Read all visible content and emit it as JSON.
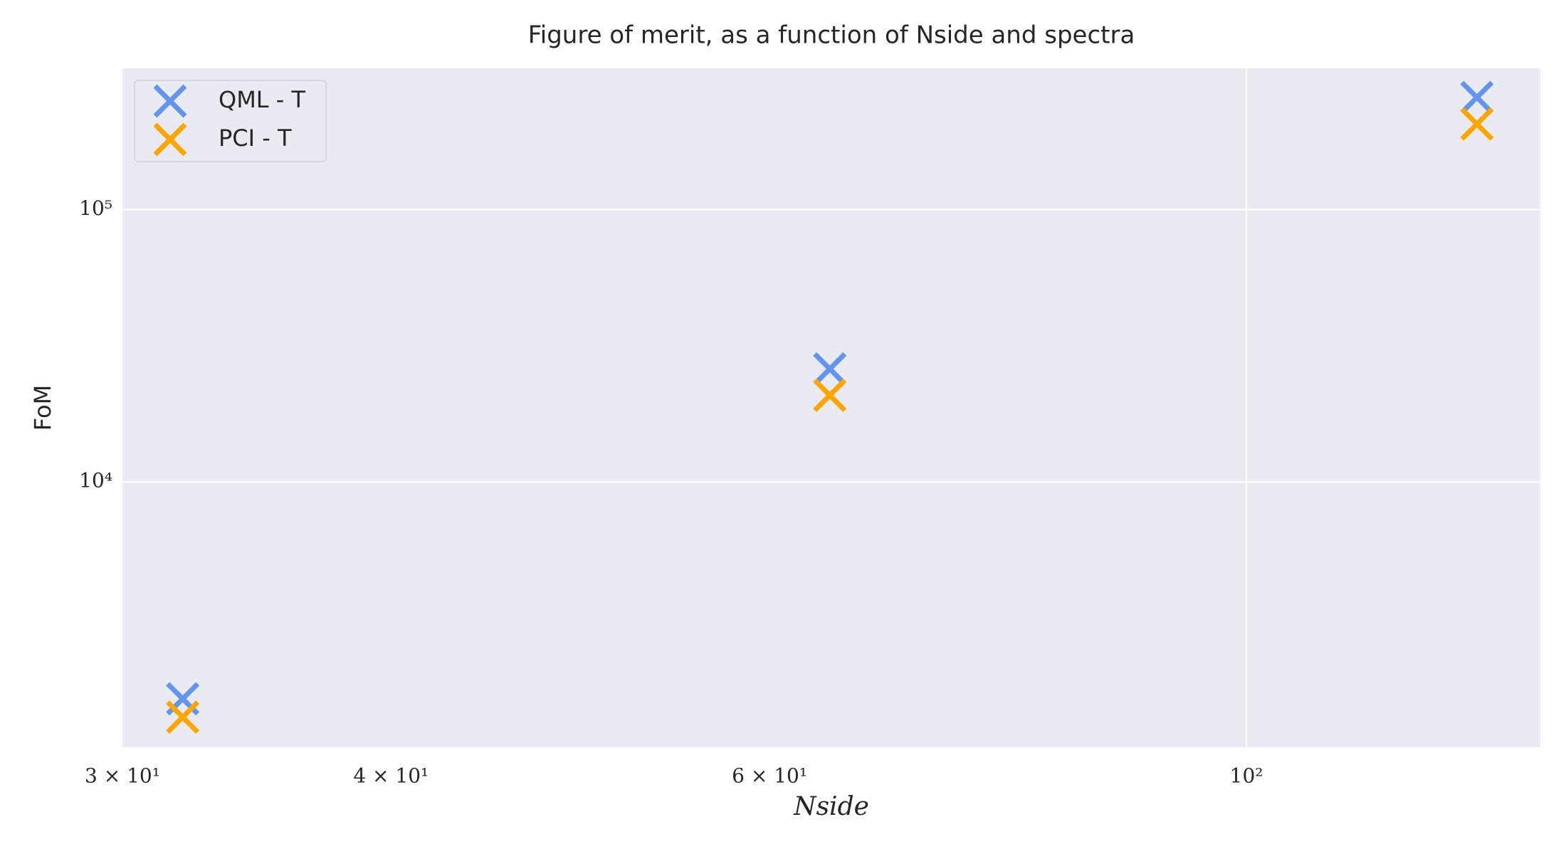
{
  "chart_data": {
    "type": "scatter",
    "title": "Figure of merit, as a function of Nside and spectra",
    "xlabel": "Nside",
    "ylabel": "FoM",
    "x": [
      32,
      64,
      128
    ],
    "series": [
      {
        "name": "QML - T",
        "color": "#6495ED",
        "values": [
          1600,
          26000,
          258000
        ]
      },
      {
        "name": "PCI - T",
        "color": "#FFA500",
        "values": [
          1370,
          20800,
          206000
        ]
      }
    ],
    "xscale": "log",
    "yscale": "log",
    "xlim": [
      30,
      137
    ],
    "ylim": [
      1062,
      330000
    ],
    "xticks": [
      {
        "value": 30,
        "label": "3 × 10¹"
      },
      {
        "value": 40,
        "label": "4 × 10¹"
      },
      {
        "value": 60,
        "label": "6 × 10¹"
      },
      {
        "value": 100,
        "label": "10²"
      }
    ],
    "xgrid": [
      100
    ],
    "yticks": [
      {
        "value": 10000,
        "label": "10⁴"
      },
      {
        "value": 100000,
        "label": "10⁵"
      }
    ],
    "grid": true,
    "legend": "upper left",
    "background": "#EAEAF2"
  }
}
